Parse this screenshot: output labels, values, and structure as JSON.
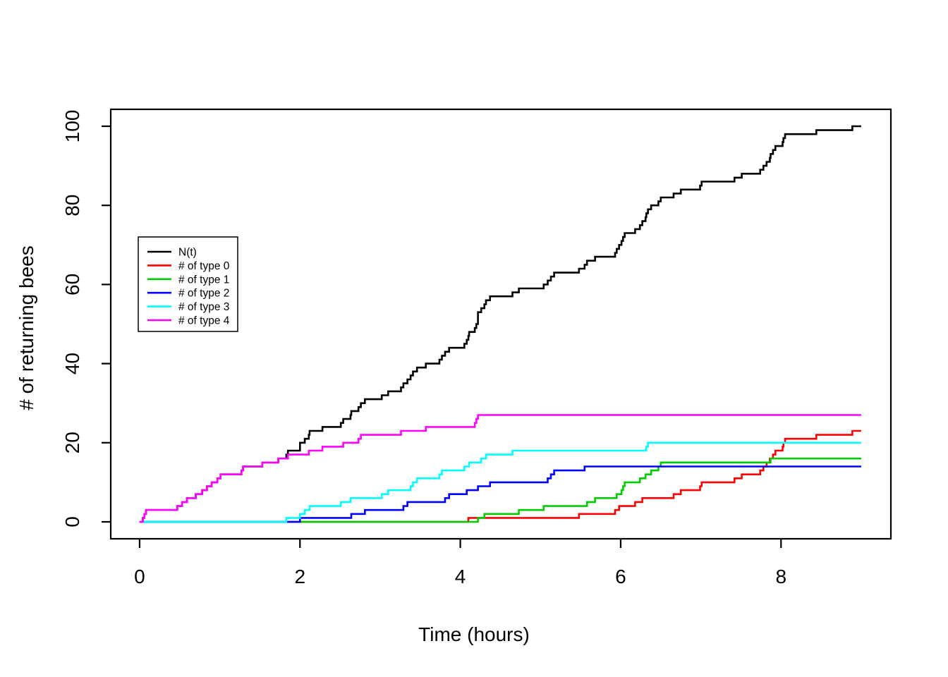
{
  "figure": {
    "background": "#ffffff",
    "frame_color": "#000000"
  },
  "chart_data": {
    "type": "line",
    "line_style": "step-post",
    "title": "",
    "xlabel": "Time (hours)",
    "ylabel": "# of returning bees",
    "xlim": [
      -0.36,
      9.37
    ],
    "ylim": [
      -4.28,
      104.28
    ],
    "xticks": [
      0,
      2,
      4,
      6,
      8
    ],
    "yticks": [
      0,
      20,
      40,
      60,
      80,
      100
    ],
    "grid": false,
    "legend_position": "left-middle",
    "series_note": "Right-continuous counting processes: each series starts at (0,0); every jump_time increments the count by 1; each curve extends flat to t=9. N(t) is the superposition (sum) of the five type series.",
    "series": [
      {
        "name": "N(t)",
        "color": "#000000",
        "start": [
          0,
          0
        ],
        "end_time": 9.0,
        "final_value": 100,
        "jump_times": [
          0.04,
          0.06,
          0.08,
          0.47,
          0.53,
          0.59,
          0.7,
          0.78,
          0.84,
          0.9,
          0.97,
          1.01,
          1.27,
          1.29,
          1.53,
          1.73,
          1.83,
          1.85,
          2.0,
          2.0,
          2.06,
          2.11,
          2.12,
          2.28,
          2.51,
          2.54,
          2.63,
          2.64,
          2.73,
          2.76,
          2.81,
          3.02,
          3.1,
          3.26,
          3.29,
          3.34,
          3.38,
          3.41,
          3.46,
          3.57,
          3.74,
          3.77,
          3.81,
          3.86,
          4.05,
          4.08,
          4.1,
          4.11,
          4.18,
          4.2,
          4.22,
          4.22,
          4.22,
          4.26,
          4.3,
          4.32,
          4.37,
          4.65,
          4.73,
          5.04,
          5.09,
          5.13,
          5.17,
          5.48,
          5.55,
          5.58,
          5.68,
          5.93,
          5.95,
          5.98,
          6.01,
          6.03,
          6.05,
          6.18,
          6.24,
          6.27,
          6.31,
          6.32,
          6.34,
          6.38,
          6.47,
          6.5,
          6.66,
          6.75,
          6.99,
          7.01,
          7.42,
          7.51,
          7.74,
          7.78,
          7.82,
          7.86,
          7.87,
          7.9,
          7.93,
          8.02,
          8.03,
          8.05,
          8.44,
          8.89
        ]
      },
      {
        "name": "# of type 0",
        "color": "#FF0000",
        "start": [
          0,
          0
        ],
        "end_time": 9.0,
        "final_value": 23,
        "jump_times": [
          4.1,
          5.48,
          5.93,
          5.98,
          6.18,
          6.27,
          6.66,
          6.75,
          6.99,
          7.01,
          7.42,
          7.51,
          7.74,
          7.78,
          7.82,
          7.86,
          7.9,
          7.93,
          8.02,
          8.03,
          8.05,
          8.44,
          8.89
        ]
      },
      {
        "name": "# of type 1",
        "color": "#00CD00",
        "start": [
          0,
          0
        ],
        "end_time": 9.0,
        "final_value": 16,
        "jump_times": [
          4.22,
          4.3,
          4.73,
          5.04,
          5.58,
          5.68,
          5.95,
          6.01,
          6.03,
          6.05,
          6.24,
          6.31,
          6.38,
          6.47,
          6.5,
          7.87
        ]
      },
      {
        "name": "# of type 2",
        "color": "#0000FF",
        "start": [
          0,
          0
        ],
        "end_time": 9.0,
        "final_value": 14,
        "jump_times": [
          2.0,
          2.64,
          2.81,
          3.29,
          3.34,
          3.81,
          3.86,
          4.08,
          4.22,
          4.37,
          5.09,
          5.13,
          5.17,
          5.55
        ]
      },
      {
        "name": "# of type 3",
        "color": "#00FFFF",
        "start": [
          0,
          0
        ],
        "end_time": 9.0,
        "final_value": 20,
        "jump_times": [
          1.83,
          2.0,
          2.06,
          2.12,
          2.51,
          2.63,
          3.02,
          3.1,
          3.38,
          3.41,
          3.46,
          3.74,
          3.77,
          4.05,
          4.11,
          4.26,
          4.32,
          4.65,
          6.32,
          6.34
        ]
      },
      {
        "name": "# of type 4",
        "color": "#FF00FF",
        "start": [
          0,
          0
        ],
        "end_time": 9.0,
        "final_value": 27,
        "jump_times": [
          0.04,
          0.06,
          0.08,
          0.47,
          0.53,
          0.59,
          0.7,
          0.78,
          0.84,
          0.9,
          0.97,
          1.01,
          1.27,
          1.29,
          1.53,
          1.73,
          1.85,
          2.11,
          2.28,
          2.54,
          2.73,
          2.76,
          3.26,
          3.57,
          4.18,
          4.2,
          4.22
        ]
      }
    ],
    "legend": {
      "entries": [
        {
          "label": "N(t)",
          "color": "#000000"
        },
        {
          "label": "# of type 0",
          "color": "#FF0000"
        },
        {
          "label": "# of type 1",
          "color": "#00CD00"
        },
        {
          "label": "# of type 2",
          "color": "#0000FF"
        },
        {
          "label": "# of type 3",
          "color": "#00FFFF"
        },
        {
          "label": "# of type 4",
          "color": "#FF00FF"
        }
      ]
    }
  }
}
